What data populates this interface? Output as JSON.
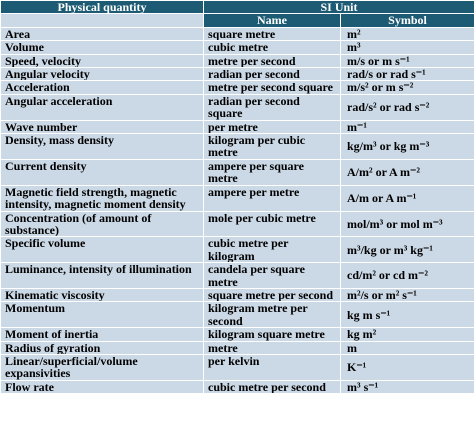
{
  "table": {
    "header": {
      "quantity": "Physical quantity",
      "si_unit": "SI Unit",
      "name": "Name",
      "symbol": "Symbol"
    },
    "rows": [
      [
        "Area",
        "square metre",
        "m²"
      ],
      [
        "Volume",
        "cubic metre",
        "m³"
      ],
      [
        "Speed, velocity",
        "metre per second",
        "m/s or m s⁻¹"
      ],
      [
        "Angular velocity",
        "radian per second",
        "rad/s or rad s⁻¹"
      ],
      [
        "Acceleration",
        "metre per second square",
        "m/s² or m s⁻²"
      ],
      [
        "Angular acceleration",
        "radian per second square",
        "rad/s² or rad s⁻²"
      ],
      [
        "Wave number",
        "per metre",
        "m⁻¹"
      ],
      [
        "Density, mass density",
        "kilogram per cubic metre",
        "kg/m³ or kg m⁻³"
      ],
      [
        "Current density",
        "ampere per square metre",
        "A/m² or A m⁻²"
      ],
      [
        "Magnetic field strength, magnetic intensity, magnetic moment density",
        "ampere per metre",
        "A/m or A m⁻¹"
      ],
      [
        "Concentration (of amount of substance)",
        "mole per cubic metre",
        "mol/m³ or mol m⁻³"
      ],
      [
        "Specific volume",
        "cubic metre per kilogram",
        "m³/kg or m³ kg⁻¹"
      ],
      [
        "Luminance, intensity of illumination",
        "candela per square metre",
        "cd/m² or cd m⁻²"
      ],
      [
        "Kinematic viscosity",
        "square metre per second",
        "m²/s or m² s⁻¹"
      ],
      [
        "Momentum",
        "kilogram metre per second",
        "kg m s⁻¹"
      ],
      [
        "Moment of inertia",
        "kilogram square metre",
        "kg m²"
      ],
      [
        "Radius of gyration",
        "metre",
        "m"
      ],
      [
        "Linear/superficial/volume expansivities",
        "per kelvin",
        "K⁻¹"
      ],
      [
        "Flow rate",
        "cubic metre per second",
        "m³ s⁻¹"
      ]
    ]
  }
}
